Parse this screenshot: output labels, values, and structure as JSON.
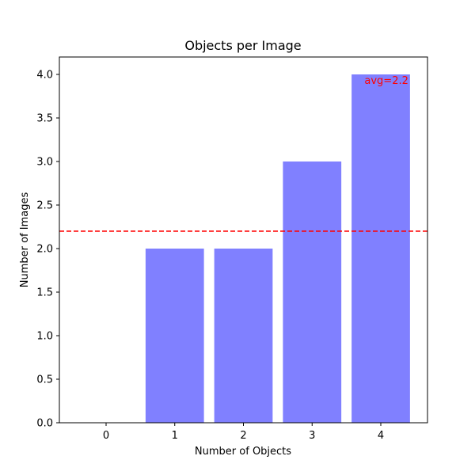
{
  "chart_data": {
    "type": "bar",
    "title": "Objects per Image",
    "xlabel": "Number of Objects",
    "ylabel": "Number of Images",
    "categories": [
      "0",
      "1",
      "2",
      "3",
      "4"
    ],
    "values": [
      0,
      2,
      2,
      3,
      4
    ],
    "ylim": [
      0,
      4.2
    ],
    "yticks": [
      "0.0",
      "0.5",
      "1.0",
      "1.5",
      "2.0",
      "2.5",
      "3.0",
      "3.5",
      "4.0"
    ],
    "grid": false,
    "bar_color": "#8080ff",
    "reference_line": {
      "value": 2.2,
      "label": "avg=2.2",
      "color": "#ff0000",
      "style": "dashed"
    }
  }
}
